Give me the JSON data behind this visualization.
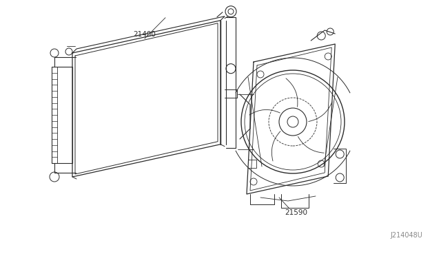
{
  "background_color": "#ffffff",
  "line_color": "#2a2a2a",
  "label_21400": "21400",
  "label_21590": "21590",
  "watermark": "J214048U",
  "watermark_color": "#888888",
  "label_fontsize": 7.5,
  "watermark_fontsize": 7
}
